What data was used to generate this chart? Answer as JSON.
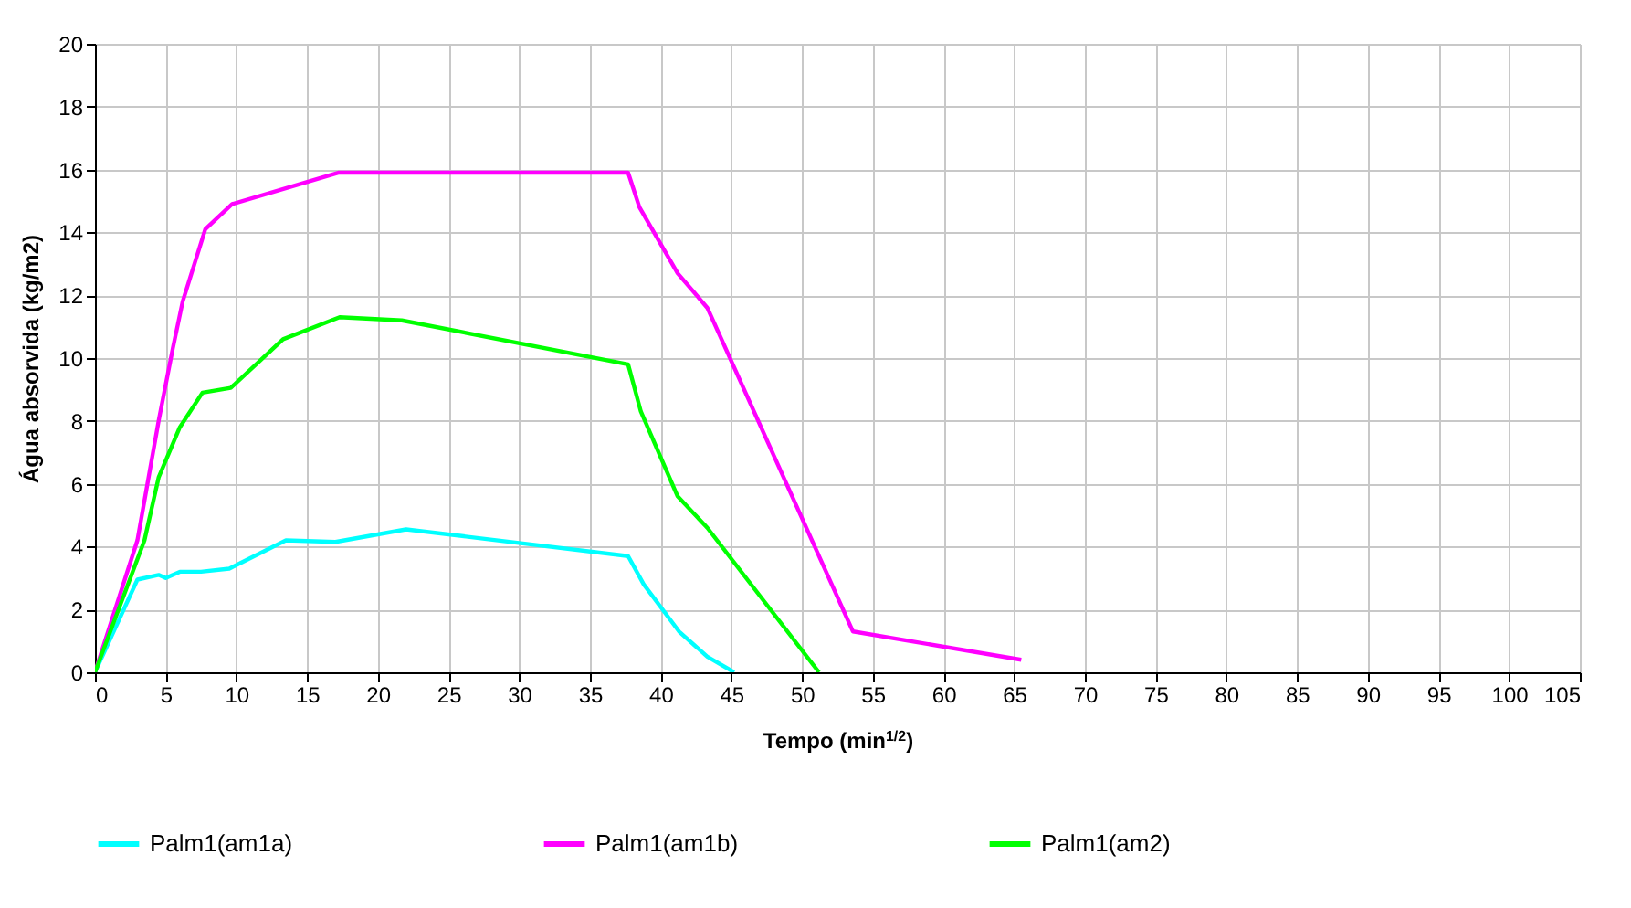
{
  "chart_data": {
    "type": "line",
    "xlabel": "Tempo (min$^{1/2}$)",
    "ylabel": "Água absorvida (kg/m2)",
    "xlim": [
      0,
      105
    ],
    "xticks": [
      0,
      5,
      10,
      15,
      20,
      25,
      30,
      35,
      40,
      45,
      50,
      55,
      60,
      65,
      70,
      75,
      80,
      85,
      90,
      95,
      100,
      105
    ],
    "ylim": [
      0,
      20
    ],
    "yticks": [
      0,
      2,
      4,
      6,
      8,
      10,
      12,
      14,
      16,
      18,
      20
    ],
    "grid": true,
    "legend": "bottom",
    "marker": "none",
    "line_style": "solid",
    "series": [
      {
        "name": "Palm1(am1a)",
        "color": "#00ffff",
        "x": [
          0,
          3,
          4.5,
          5,
          6,
          7.5,
          9.5,
          13.5,
          17,
          22,
          37.7,
          38.8,
          41.3,
          43.3,
          45.2
        ],
        "values": [
          0,
          2.95,
          3.1,
          3.0,
          3.2,
          3.2,
          3.3,
          4.2,
          4.15,
          4.55,
          3.7,
          2.8,
          1.3,
          0.5,
          0
        ]
      },
      {
        "name": "Palm1(am1b)",
        "color": "#ff00ff",
        "x": [
          0,
          3,
          4.5,
          5.5,
          6.2,
          7.8,
          9.7,
          17.2,
          37.7,
          38.5,
          41.2,
          43.3,
          53.6,
          65.5
        ],
        "values": [
          0,
          4.2,
          8,
          10.3,
          11.8,
          14.1,
          14.9,
          15.9,
          15.9,
          14.8,
          12.7,
          11.6,
          1.3,
          0.4
        ]
      },
      {
        "name": "Palm1(am2)",
        "color": "#00ff00",
        "x": [
          0,
          3.5,
          4.5,
          6,
          7.6,
          9.6,
          13.3,
          17.3,
          21.7,
          37.7,
          38.6,
          41.2,
          43.3,
          51.2
        ],
        "values": [
          0,
          4.2,
          6.2,
          7.8,
          8.9,
          9.05,
          10.6,
          11.3,
          11.2,
          9.8,
          8.3,
          5.6,
          4.6,
          0
        ]
      }
    ]
  }
}
